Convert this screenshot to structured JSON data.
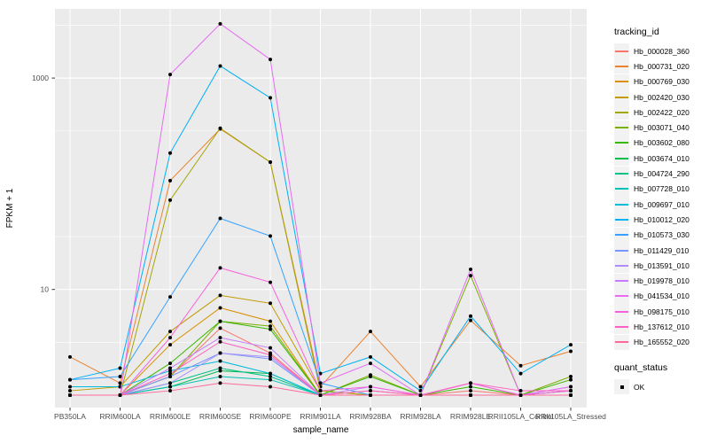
{
  "colors": {
    "panel_background": "#EBEBEB",
    "gridline": "#FFFFFF",
    "tick_text": "#4D4D4D",
    "axis_text": "#000000",
    "point": "#000000",
    "legend_key_background": "#F2F2F2"
  },
  "legend": {
    "tracking_title": "tracking_id",
    "quant_title": "quant_status",
    "quant_items": [
      {
        "label": "OK",
        "marker": "black-square"
      }
    ]
  },
  "chart_data": {
    "type": "line",
    "title": "",
    "xlabel": "sample_name",
    "ylabel": "FPKM + 1",
    "y_scale": "log10",
    "y_ticks": [
      {
        "value": 10,
        "label": "10"
      },
      {
        "value": 1000,
        "label": "1000"
      }
    ],
    "y_minor_ticks": [
      3.162,
      31.62,
      316.2,
      3162
    ],
    "ylim_fpkm_plus_1": [
      1,
      4500
    ],
    "grid": true,
    "legend_position": "right",
    "point_marker": "black-dot",
    "categories": [
      "PB350LA",
      "RRIM600LA",
      "RRIM600LE",
      "RRIM600SE",
      "RRIM600PE",
      "RRIM901LA",
      "RRIM928BA",
      "RRIM928LA",
      "RRIM928LE",
      "RRII105LA_Control",
      "RRII105LA_Stressed"
    ],
    "series": [
      {
        "name": "Hb_000028_360",
        "color": "#F8766D",
        "values": [
          1,
          1,
          1.5,
          4.3,
          2.5,
          1,
          1.1,
          1,
          1.1,
          1,
          1.1
        ]
      },
      {
        "name": "Hb_000731_020",
        "color": "#EA8331",
        "values": [
          2.3,
          1.3,
          107,
          330,
          160,
          1.2,
          4,
          1.2,
          5.1,
          1.9,
          2.6
        ]
      },
      {
        "name": "Hb_000769_030",
        "color": "#D89000",
        "values": [
          1,
          1,
          3,
          6.7,
          5,
          1,
          1,
          1,
          1,
          1,
          1
        ]
      },
      {
        "name": "Hb_002420_030",
        "color": "#C09B00",
        "values": [
          1.1,
          1.2,
          4,
          8.8,
          7.4,
          1.1,
          1,
          1,
          1,
          1,
          1
        ]
      },
      {
        "name": "Hb_002422_020",
        "color": "#A3A500",
        "values": [
          1,
          1,
          70,
          335,
          160,
          1.1,
          1,
          1,
          1,
          1,
          1
        ]
      },
      {
        "name": "Hb_003071_040",
        "color": "#7CAE00",
        "values": [
          1,
          1,
          1.5,
          5,
          4.5,
          1,
          1.55,
          1,
          13.5,
          1,
          1.5
        ]
      },
      {
        "name": "Hb_003602_080",
        "color": "#39B600",
        "values": [
          1,
          1,
          2,
          5,
          4.2,
          1,
          1.5,
          1,
          1.2,
          1,
          1.4
        ]
      },
      {
        "name": "Hb_003674_010",
        "color": "#00BB4E",
        "values": [
          1,
          1,
          1.2,
          1.7,
          1.6,
          1,
          1,
          1,
          1,
          1,
          1
        ]
      },
      {
        "name": "Hb_004724_290",
        "color": "#00C087",
        "values": [
          1,
          1,
          1.3,
          1.8,
          1.5,
          1,
          1,
          1,
          1,
          1,
          1
        ]
      },
      {
        "name": "Hb_007728_010",
        "color": "#00C0B4",
        "values": [
          1,
          1,
          1.2,
          1.5,
          1.4,
          1,
          1,
          1,
          1,
          1,
          1.1
        ]
      },
      {
        "name": "Hb_009697_010",
        "color": "#00BCD8",
        "values": [
          1.2,
          1.2,
          1.7,
          2.1,
          1.6,
          1,
          1,
          1,
          1,
          1,
          1
        ]
      },
      {
        "name": "Hb_010012_020",
        "color": "#00B0F6",
        "values": [
          1.4,
          1.8,
          195,
          1300,
          650,
          1.6,
          2.3,
          1.1,
          5.6,
          1.6,
          3
        ]
      },
      {
        "name": "Hb_010573_030",
        "color": "#35A2FF",
        "values": [
          1.4,
          1.5,
          8.5,
          47,
          32,
          1.3,
          1,
          1,
          1,
          1,
          1
        ]
      },
      {
        "name": "Hb_011429_010",
        "color": "#7997FF",
        "values": [
          1,
          1,
          1.5,
          2.5,
          2.2,
          1,
          1,
          1,
          1,
          1,
          1
        ]
      },
      {
        "name": "Hb_013591_010",
        "color": "#AC8EFF",
        "values": [
          1,
          1,
          1.3,
          2.5,
          2.3,
          1,
          1,
          1,
          1,
          1,
          1
        ]
      },
      {
        "name": "Hb_019978_010",
        "color": "#C77CFF",
        "values": [
          1,
          1,
          1.8,
          3.5,
          2.8,
          1,
          1.2,
          1,
          1.3,
          1,
          1.2
        ]
      },
      {
        "name": "Hb_041534_010",
        "color": "#E76BF3",
        "values": [
          1,
          1,
          1080,
          3260,
          1500,
          1.3,
          2,
          1,
          15.5,
          1,
          1.2
        ]
      },
      {
        "name": "Hb_098175_010",
        "color": "#FA62DB",
        "values": [
          1,
          1,
          3.5,
          16,
          11.7,
          1.1,
          1.2,
          1,
          1.3,
          1,
          1.1
        ]
      },
      {
        "name": "Hb_137612_010",
        "color": "#FF61C2",
        "values": [
          1,
          1,
          1.6,
          3.2,
          2.4,
          1,
          1.1,
          1,
          1.3,
          1.1,
          1.1
        ]
      },
      {
        "name": "Hb_165552_020",
        "color": "#FF689E",
        "values": [
          1,
          1,
          1.1,
          1.3,
          1.2,
          1,
          1,
          1,
          1,
          1,
          1
        ]
      }
    ]
  }
}
